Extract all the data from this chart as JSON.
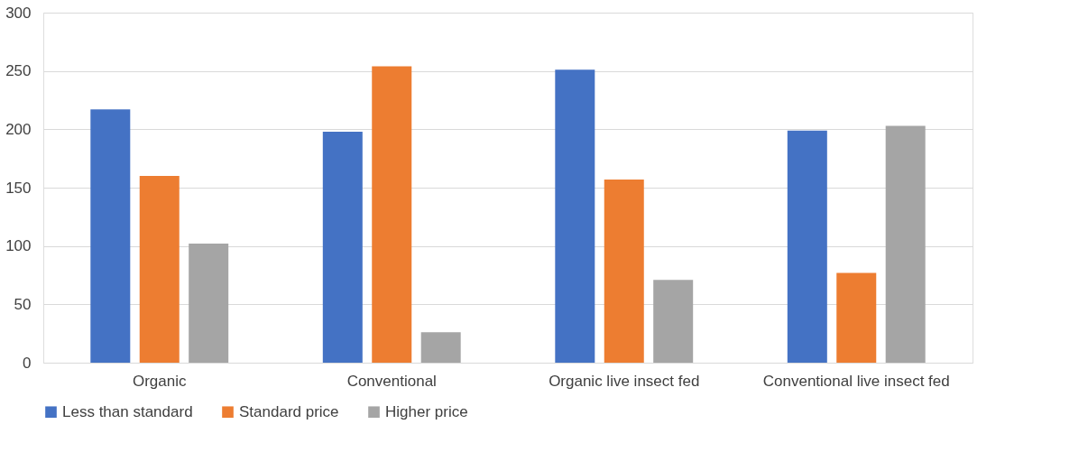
{
  "chart_data": {
    "type": "bar",
    "categories": [
      "Organic",
      "Conventional",
      "Organic live insect fed",
      "Conventional live insect fed"
    ],
    "series": [
      {
        "name": "Less than standard",
        "color": "#4472c4",
        "values": [
          217,
          198,
          251,
          199
        ]
      },
      {
        "name": "Standard price",
        "color": "#ed7d31",
        "values": [
          160,
          254,
          157,
          77
        ]
      },
      {
        "name": "Higher price",
        "color": "#a5a5a5",
        "values": [
          102,
          26,
          71,
          203
        ]
      }
    ],
    "ylim": [
      0,
      300
    ],
    "yticks": [
      0,
      50,
      100,
      150,
      200,
      250,
      300
    ],
    "grid": "y",
    "legend": "bottom"
  }
}
